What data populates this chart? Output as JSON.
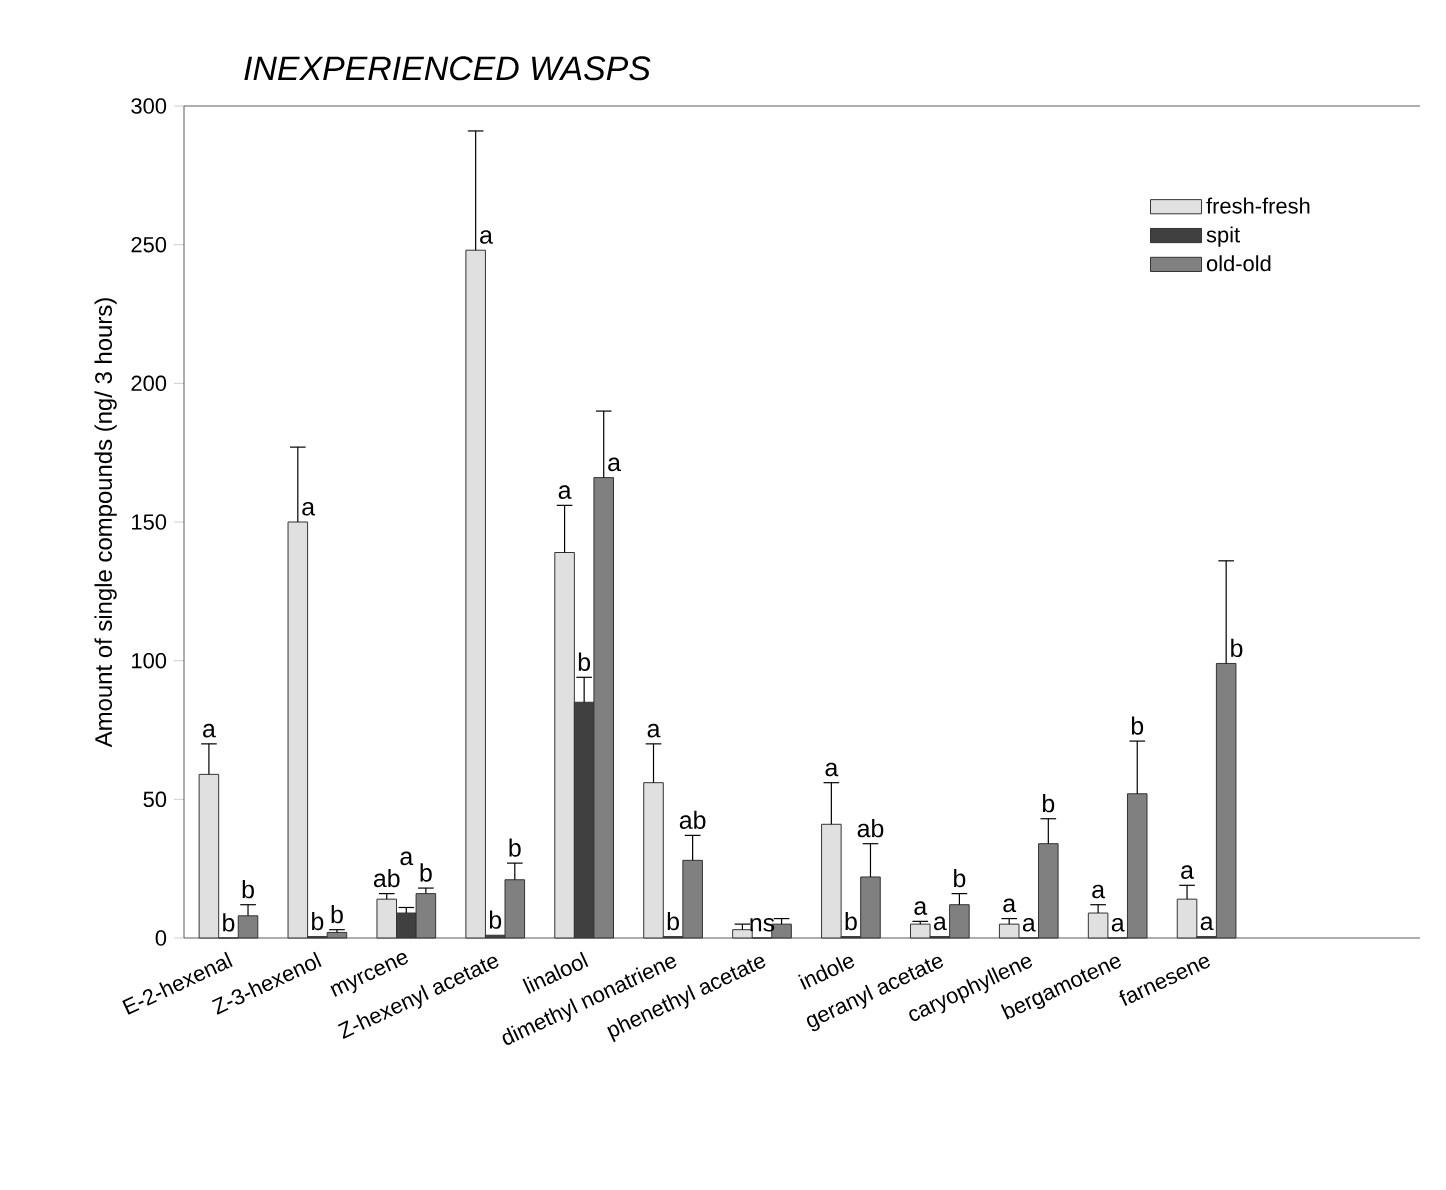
{
  "chart_data": {
    "type": "bar",
    "title": "INEXPERIENCED WASPS",
    "ylabel": "Amount of single compounds (ng/ 3 hours)",
    "categories": [
      "E-2-hexenal",
      "Z-3-hexenol",
      "myrcene",
      "Z-hexenyl acetate",
      "linalool",
      "dimethyl nonatriene",
      "phenethyl acetate",
      "indole",
      "geranyl acetate",
      "caryophyllene",
      "bergamotene",
      "farnesene"
    ],
    "series": [
      {
        "name": "fresh-fresh",
        "color": "#e0e0e0",
        "values": [
          59,
          150,
          14,
          248,
          139,
          56,
          3,
          41,
          5,
          5,
          9,
          14
        ],
        "errors": [
          [
            59,
            70
          ],
          [
            150,
            177
          ],
          [
            14,
            16
          ],
          [
            248,
            291
          ],
          [
            139,
            156
          ],
          [
            56,
            70
          ],
          [
            3,
            5
          ],
          [
            41,
            56
          ],
          [
            5,
            6
          ],
          [
            5,
            7
          ],
          [
            9,
            12
          ],
          [
            14,
            19
          ]
        ],
        "value_labels": [
          "a",
          "a",
          "ab",
          "a",
          "a",
          "a",
          null,
          "a",
          "a",
          "a",
          "a",
          "a"
        ]
      },
      {
        "name": "spit",
        "color": "#404040",
        "values": [
          0,
          0.5,
          9,
          1,
          85,
          0.5,
          0,
          0.5,
          0.5,
          0,
          0,
          0.5
        ],
        "errors": [
          null,
          null,
          [
            9,
            11
          ],
          null,
          [
            85,
            94
          ],
          null,
          null,
          null,
          null,
          null,
          null,
          null
        ],
        "value_labels": [
          "b",
          "b",
          "a",
          "b",
          "b",
          "b",
          "ns",
          "b",
          "a",
          "a",
          "a",
          "a"
        ]
      },
      {
        "name": "old-old",
        "color": "#808080",
        "values": [
          8,
          2,
          16,
          21,
          166,
          28,
          5,
          22,
          12,
          34,
          52,
          99
        ],
        "errors": [
          [
            8,
            12
          ],
          [
            2,
            3
          ],
          [
            16,
            18
          ],
          [
            21,
            27
          ],
          [
            166,
            190
          ],
          [
            28,
            37
          ],
          [
            5,
            7
          ],
          [
            22,
            34
          ],
          [
            12,
            16
          ],
          [
            34,
            43
          ],
          [
            52,
            71
          ],
          [
            99,
            136
          ]
        ],
        "value_labels": [
          "b",
          "b",
          "b",
          "b",
          "a",
          "ab",
          null,
          "ab",
          "b",
          "b",
          "b",
          "b"
        ]
      }
    ],
    "ylim": [
      0,
      300
    ],
    "yticks": [
      0,
      50,
      100,
      150,
      200,
      250,
      300
    ],
    "legend": "top right"
  }
}
